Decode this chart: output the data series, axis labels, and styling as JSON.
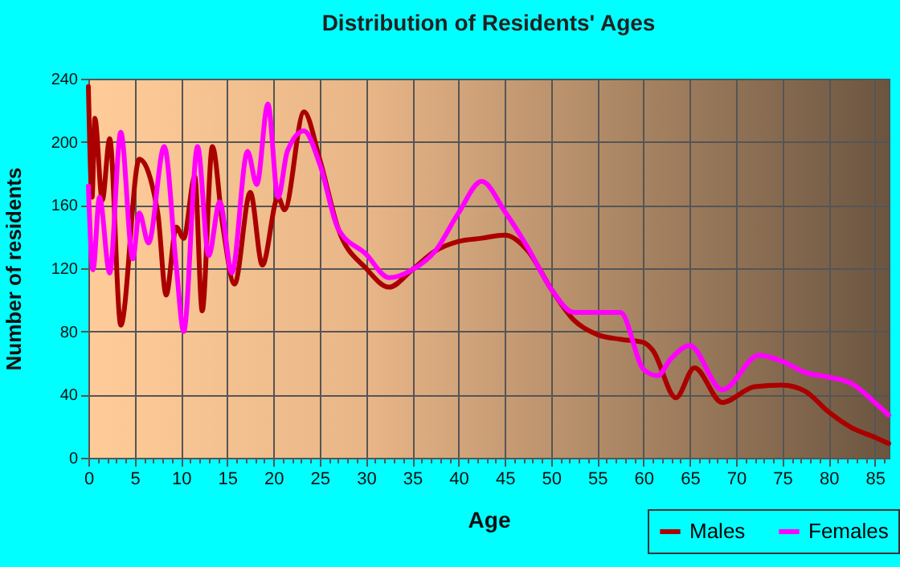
{
  "chart_data": {
    "type": "line",
    "title": "Distribution of Residents' Ages",
    "xlabel": "Age",
    "ylabel": "Number of residents",
    "xlim": [
      0,
      86.5
    ],
    "ylim": [
      0,
      240
    ],
    "xticks": [
      0,
      {
        "value": 1,
        "label": null
      },
      {
        "value": 2,
        "label": null
      },
      {
        "value": 3,
        "label": null
      },
      {
        "value": 4,
        "label": null
      },
      5,
      {
        "value": 6,
        "label": null
      },
      {
        "value": 7,
        "label": null
      },
      {
        "value": 8,
        "label": null
      },
      {
        "value": 9,
        "label": null
      },
      10,
      {
        "value": 11,
        "label": null
      },
      {
        "value": 12,
        "label": null
      },
      {
        "value": 13,
        "label": null
      },
      {
        "value": 14,
        "label": null
      },
      15,
      {
        "value": 16,
        "label": null
      },
      {
        "value": 17,
        "label": null
      },
      {
        "value": 18,
        "label": null
      },
      {
        "value": 19,
        "label": null
      },
      20,
      {
        "value": 21,
        "label": null
      },
      {
        "value": 22,
        "label": null
      },
      {
        "value": 23,
        "label": null
      },
      {
        "value": 24,
        "label": null
      },
      25,
      {
        "value": 26,
        "label": null
      },
      {
        "value": 27,
        "label": null
      },
      {
        "value": 28,
        "label": null
      },
      {
        "value": 29,
        "label": null
      },
      30,
      {
        "value": 31,
        "label": null
      },
      {
        "value": 32,
        "label": null
      },
      {
        "value": 33,
        "label": null
      },
      {
        "value": 34,
        "label": null
      },
      35,
      {
        "value": 36,
        "label": null
      },
      {
        "value": 37,
        "label": null
      },
      {
        "value": 38,
        "label": null
      },
      {
        "value": 39,
        "label": null
      },
      40,
      {
        "value": 41,
        "label": null
      },
      {
        "value": 42,
        "label": null
      },
      {
        "value": 43,
        "label": null
      },
      {
        "value": 44,
        "label": null
      },
      45,
      {
        "value": 46,
        "label": null
      },
      {
        "value": 47,
        "label": null
      },
      {
        "value": 48,
        "label": null
      },
      {
        "value": 49,
        "label": null
      },
      50,
      {
        "value": 51,
        "label": null
      },
      {
        "value": 52,
        "label": null
      },
      {
        "value": 53,
        "label": null
      },
      {
        "value": 54,
        "label": null
      },
      55,
      {
        "value": 56,
        "label": null
      },
      {
        "value": 57,
        "label": null
      },
      {
        "value": 58,
        "label": null
      },
      {
        "value": 59,
        "label": null
      },
      60,
      {
        "value": 61,
        "label": null
      },
      {
        "value": 62,
        "label": null
      },
      {
        "value": 63,
        "label": null
      },
      {
        "value": 64,
        "label": null
      },
      65,
      {
        "value": 66,
        "label": null
      },
      {
        "value": 67,
        "label": null
      },
      {
        "value": 68,
        "label": null
      },
      {
        "value": 69,
        "label": null
      },
      70,
      {
        "value": 71,
        "label": null
      },
      {
        "value": 72,
        "label": null
      },
      {
        "value": 73,
        "label": null
      },
      {
        "value": 74,
        "label": null
      },
      75,
      {
        "value": 76,
        "label": null
      },
      {
        "value": 77,
        "label": null
      },
      {
        "value": 78,
        "label": null
      },
      {
        "value": 79,
        "label": null
      },
      80,
      {
        "value": 81,
        "label": null
      },
      {
        "value": 82,
        "label": null
      },
      {
        "value": 83,
        "label": null
      },
      {
        "value": 84,
        "label": null
      },
      85,
      {
        "value": 86,
        "label": null
      }
    ],
    "yticks": [
      0,
      40,
      80,
      120,
      160,
      200,
      240
    ],
    "grid": true,
    "legend": "bottom right",
    "marker": "none",
    "line_style": "solid",
    "series": [
      {
        "name": "Males",
        "color": "#aa0000",
        "x": [
          0,
          0.4,
          0.7,
          1.5,
          2.3,
          3.5,
          5.5,
          7.5,
          8.4,
          9.5,
          10.3,
          11.5,
          12.3,
          13.4,
          14.5,
          15.8,
          17.5,
          18.8,
          20.5,
          21.2,
          23.3,
          25,
          27,
          30,
          32.5,
          35,
          37.5,
          40,
          42.5,
          45,
          47.5,
          50,
          52.5,
          55,
          57.5,
          60,
          61,
          63.5,
          65.5,
          68.5,
          72,
          75,
          77.5,
          80,
          82.5,
          85,
          86.5
        ],
        "values": [
          235,
          165,
          215,
          163,
          202,
          84,
          189,
          155,
          103,
          146,
          139,
          178,
          93,
          197,
          148,
          110,
          168,
          122,
          165,
          157,
          219,
          189,
          145,
          120,
          108,
          119,
          131,
          137,
          139,
          141,
          131,
          107,
          87,
          78,
          75,
          73,
          68,
          38,
          57,
          35,
          45,
          46,
          42,
          29,
          19,
          13,
          9
        ]
      },
      {
        "name": "Females",
        "color": "#ff00ff",
        "x": [
          0,
          0.5,
          1.2,
          2.3,
          3.5,
          4.8,
          5.5,
          6.5,
          8.2,
          9.5,
          10.3,
          11.8,
          13,
          14.2,
          15.5,
          17.2,
          18.2,
          19.4,
          20.5,
          21.5,
          23.3,
          25,
          27,
          30,
          32.5,
          35,
          37.5,
          40,
          42.5,
          45,
          47.5,
          50,
          52.5,
          55,
          57.5,
          60,
          61.5,
          63,
          65,
          68.5,
          72.5,
          75,
          77.5,
          80,
          82.5,
          85,
          86.5
        ],
        "values": [
          172,
          119,
          165,
          117,
          206,
          126,
          155,
          136,
          197,
          121,
          80,
          197,
          128,
          162,
          117,
          194,
          173,
          224,
          165,
          194,
          207,
          186,
          145,
          129,
          114,
          119,
          131,
          155,
          175,
          156,
          133,
          107,
          92,
          92,
          92,
          56,
          52,
          63,
          71,
          43,
          65,
          61,
          54,
          51,
          47,
          35,
          27
        ]
      }
    ]
  }
}
